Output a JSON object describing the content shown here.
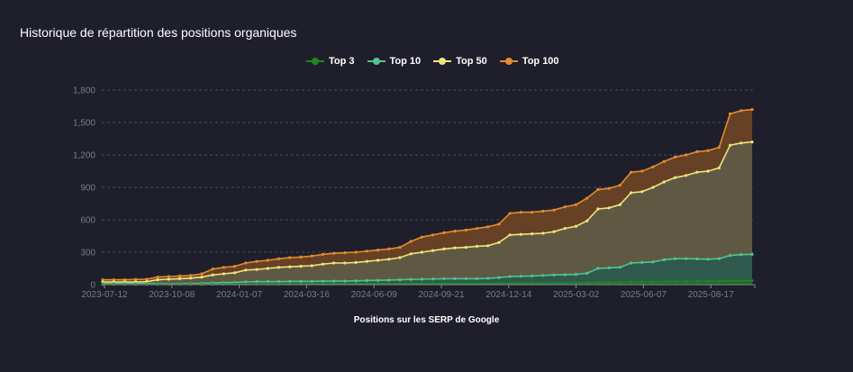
{
  "chart_data": {
    "type": "area",
    "title": "Historique de répartition des positions organiques",
    "xlabel": "Positions sur les SERP de Google",
    "ylabel": "",
    "ylim": [
      0,
      1800
    ],
    "yticks": [
      "0",
      "300",
      "600",
      "900",
      "1,200",
      "1,500",
      "1,800"
    ],
    "ytick_values": [
      0,
      300,
      600,
      900,
      1200,
      1500,
      1800
    ],
    "xticks": [
      "2023-07-12",
      "2023-10-08",
      "2024-01-07",
      "2024-03-16",
      "2024-06-09",
      "2024-09-21",
      "2024-12-14",
      "2025-03-02",
      "2025-06-07",
      "2025-08-17"
    ],
    "grid": true,
    "legend_position": "top",
    "series": [
      {
        "name": "Top 100",
        "color": "#e58a2e",
        "fill": "#6a4325",
        "values": [
          45,
          45,
          45,
          48,
          50,
          70,
          75,
          80,
          85,
          100,
          145,
          160,
          170,
          200,
          215,
          225,
          240,
          250,
          255,
          265,
          280,
          290,
          295,
          300,
          310,
          320,
          330,
          345,
          400,
          440,
          460,
          480,
          495,
          505,
          520,
          535,
          560,
          660,
          670,
          670,
          680,
          690,
          720,
          740,
          800,
          880,
          890,
          920,
          1040,
          1050,
          1090,
          1140,
          1180,
          1200,
          1230,
          1240,
          1270,
          1580,
          1610,
          1620
        ]
      },
      {
        "name": "Top 50",
        "color": "#ede47c",
        "fill": "#5f5b46",
        "values": [
          25,
          25,
          25,
          25,
          28,
          45,
          50,
          55,
          60,
          70,
          90,
          100,
          110,
          135,
          140,
          150,
          160,
          165,
          170,
          175,
          190,
          200,
          200,
          205,
          215,
          225,
          235,
          250,
          285,
          300,
          315,
          330,
          340,
          345,
          355,
          360,
          390,
          460,
          465,
          470,
          475,
          490,
          520,
          540,
          590,
          700,
          710,
          740,
          850,
          860,
          900,
          950,
          990,
          1010,
          1040,
          1050,
          1080,
          1290,
          1310,
          1320
        ]
      },
      {
        "name": "Top 10",
        "color": "#4fc48f",
        "fill": "#2d5a4e",
        "values": [
          10,
          10,
          10,
          10,
          10,
          8,
          8,
          8,
          10,
          12,
          15,
          18,
          20,
          25,
          28,
          28,
          28,
          30,
          30,
          30,
          32,
          32,
          33,
          35,
          38,
          40,
          42,
          45,
          48,
          50,
          52,
          55,
          55,
          55,
          55,
          58,
          65,
          75,
          78,
          80,
          85,
          90,
          92,
          95,
          105,
          150,
          155,
          160,
          200,
          205,
          210,
          230,
          240,
          240,
          238,
          235,
          240,
          270,
          278,
          280
        ]
      },
      {
        "name": "Top 3",
        "color": "#1a8a1f",
        "fill": "#176b20",
        "values": [
          2,
          2,
          2,
          2,
          2,
          2,
          3,
          3,
          3,
          3,
          4,
          4,
          5,
          5,
          6,
          6,
          6,
          6,
          6,
          7,
          7,
          7,
          7,
          8,
          8,
          8,
          8,
          8,
          9,
          9,
          9,
          10,
          10,
          10,
          10,
          10,
          11,
          12,
          12,
          13,
          13,
          14,
          15,
          16,
          18,
          20,
          20,
          22,
          24,
          25,
          26,
          28,
          28,
          28,
          30,
          30,
          32,
          34,
          35,
          36
        ]
      }
    ],
    "legend": [
      "Top 3",
      "Top 10",
      "Top 50",
      "Top 100"
    ]
  }
}
